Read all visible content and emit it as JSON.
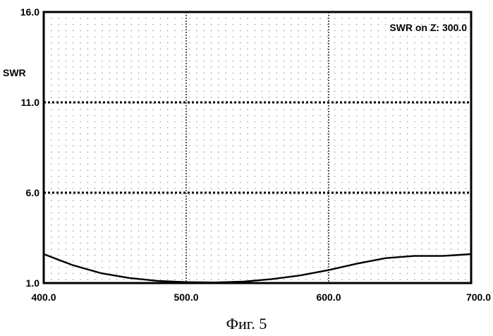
{
  "chart_data": {
    "type": "line",
    "ylabel": "SWR",
    "annotation": "SWR on Z: 300.0",
    "xlim": [
      400,
      700
    ],
    "ylim": [
      1,
      16
    ],
    "x_ticks": [
      {
        "value": 400,
        "label": "400.0"
      },
      {
        "value": 500,
        "label": "500.0"
      },
      {
        "value": 600,
        "label": "600.0"
      },
      {
        "value": 700,
        "label": "700.0"
      }
    ],
    "y_ticks": [
      {
        "value": 1,
        "label": "1.0"
      },
      {
        "value": 6,
        "label": "6.0"
      },
      {
        "value": 11,
        "label": "11.0"
      },
      {
        "value": 16,
        "label": "16.0"
      }
    ],
    "grid": true,
    "series": [
      {
        "color": "#000000",
        "x": [
          400,
          420,
          440,
          460,
          480,
          500,
          520,
          540,
          560,
          580,
          600,
          620,
          640,
          660,
          680,
          700
        ],
        "y": [
          2.6,
          2.0,
          1.55,
          1.28,
          1.12,
          1.05,
          1.03,
          1.08,
          1.22,
          1.42,
          1.72,
          2.08,
          2.38,
          2.5,
          2.5,
          2.6
        ]
      }
    ]
  },
  "caption": "Фиг. 5"
}
